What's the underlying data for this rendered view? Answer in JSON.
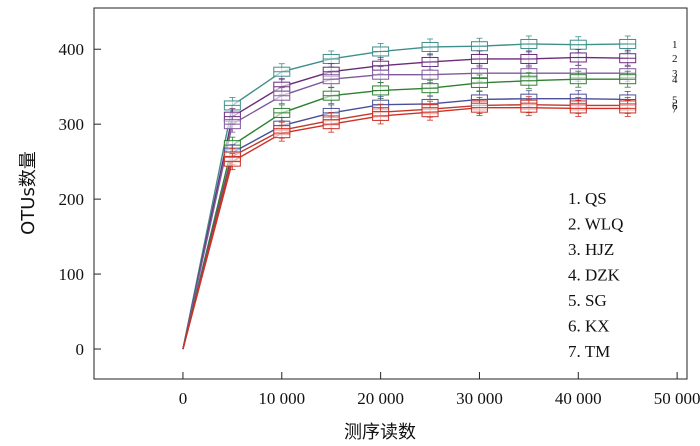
{
  "chart_data": {
    "type": "line",
    "xlabel": "测序读数",
    "ylabel": "OTUs数量",
    "xlim": [
      -9000,
      51000
    ],
    "ylim": [
      -40,
      455
    ],
    "xticks": [
      0,
      10000,
      20000,
      30000,
      40000,
      50000
    ],
    "xtick_labels": [
      "0",
      "10 000",
      "20 000",
      "30 000",
      "40 000",
      "50 000"
    ],
    "yticks": [
      0,
      100,
      200,
      300,
      400
    ],
    "ytick_labels": [
      "0",
      "100",
      "200",
      "300",
      "400"
    ],
    "grid": false,
    "legend_position": "bottom-right",
    "x": [
      0,
      5000,
      10000,
      15000,
      20000,
      25000,
      30000,
      35000,
      40000,
      45000
    ],
    "series": [
      {
        "name": "QS",
        "legend": "1. QS",
        "end_label": "1",
        "color": "#3f8f8a",
        "values": [
          0,
          325,
          370,
          387,
          397,
          403,
          404,
          407,
          406,
          407
        ]
      },
      {
        "name": "WLQ",
        "legend": "2. WLQ",
        "end_label": "2",
        "color": "#6a2b7b",
        "values": [
          0,
          310,
          350,
          370,
          378,
          383,
          387,
          387,
          389,
          388
        ]
      },
      {
        "name": "HJZ",
        "legend": "3. HJZ",
        "end_label": "3",
        "color": "#7e5a9b",
        "values": [
          0,
          300,
          338,
          360,
          366,
          366,
          368,
          368,
          368,
          368
        ]
      },
      {
        "name": "DZK",
        "legend": "4. DZK",
        "end_label": "4",
        "color": "#2f8033",
        "values": [
          0,
          272,
          315,
          338,
          345,
          348,
          355,
          358,
          360,
          360
        ]
      },
      {
        "name": "SG",
        "legend": "5. SG",
        "end_label": "5",
        "color": "#4b4f98",
        "values": [
          0,
          262,
          298,
          315,
          326,
          327,
          333,
          334,
          334,
          333
        ]
      },
      {
        "name": "KX",
        "legend": "6. KX",
        "end_label": "6",
        "color": "#c0392b",
        "values": [
          0,
          257,
          292,
          305,
          316,
          320,
          325,
          326,
          325,
          325
        ]
      },
      {
        "name": "TM",
        "legend": "7. TM",
        "end_label": "7",
        "color": "#d03027",
        "values": [
          0,
          250,
          288,
          300,
          311,
          316,
          322,
          322,
          321,
          321
        ]
      }
    ]
  }
}
